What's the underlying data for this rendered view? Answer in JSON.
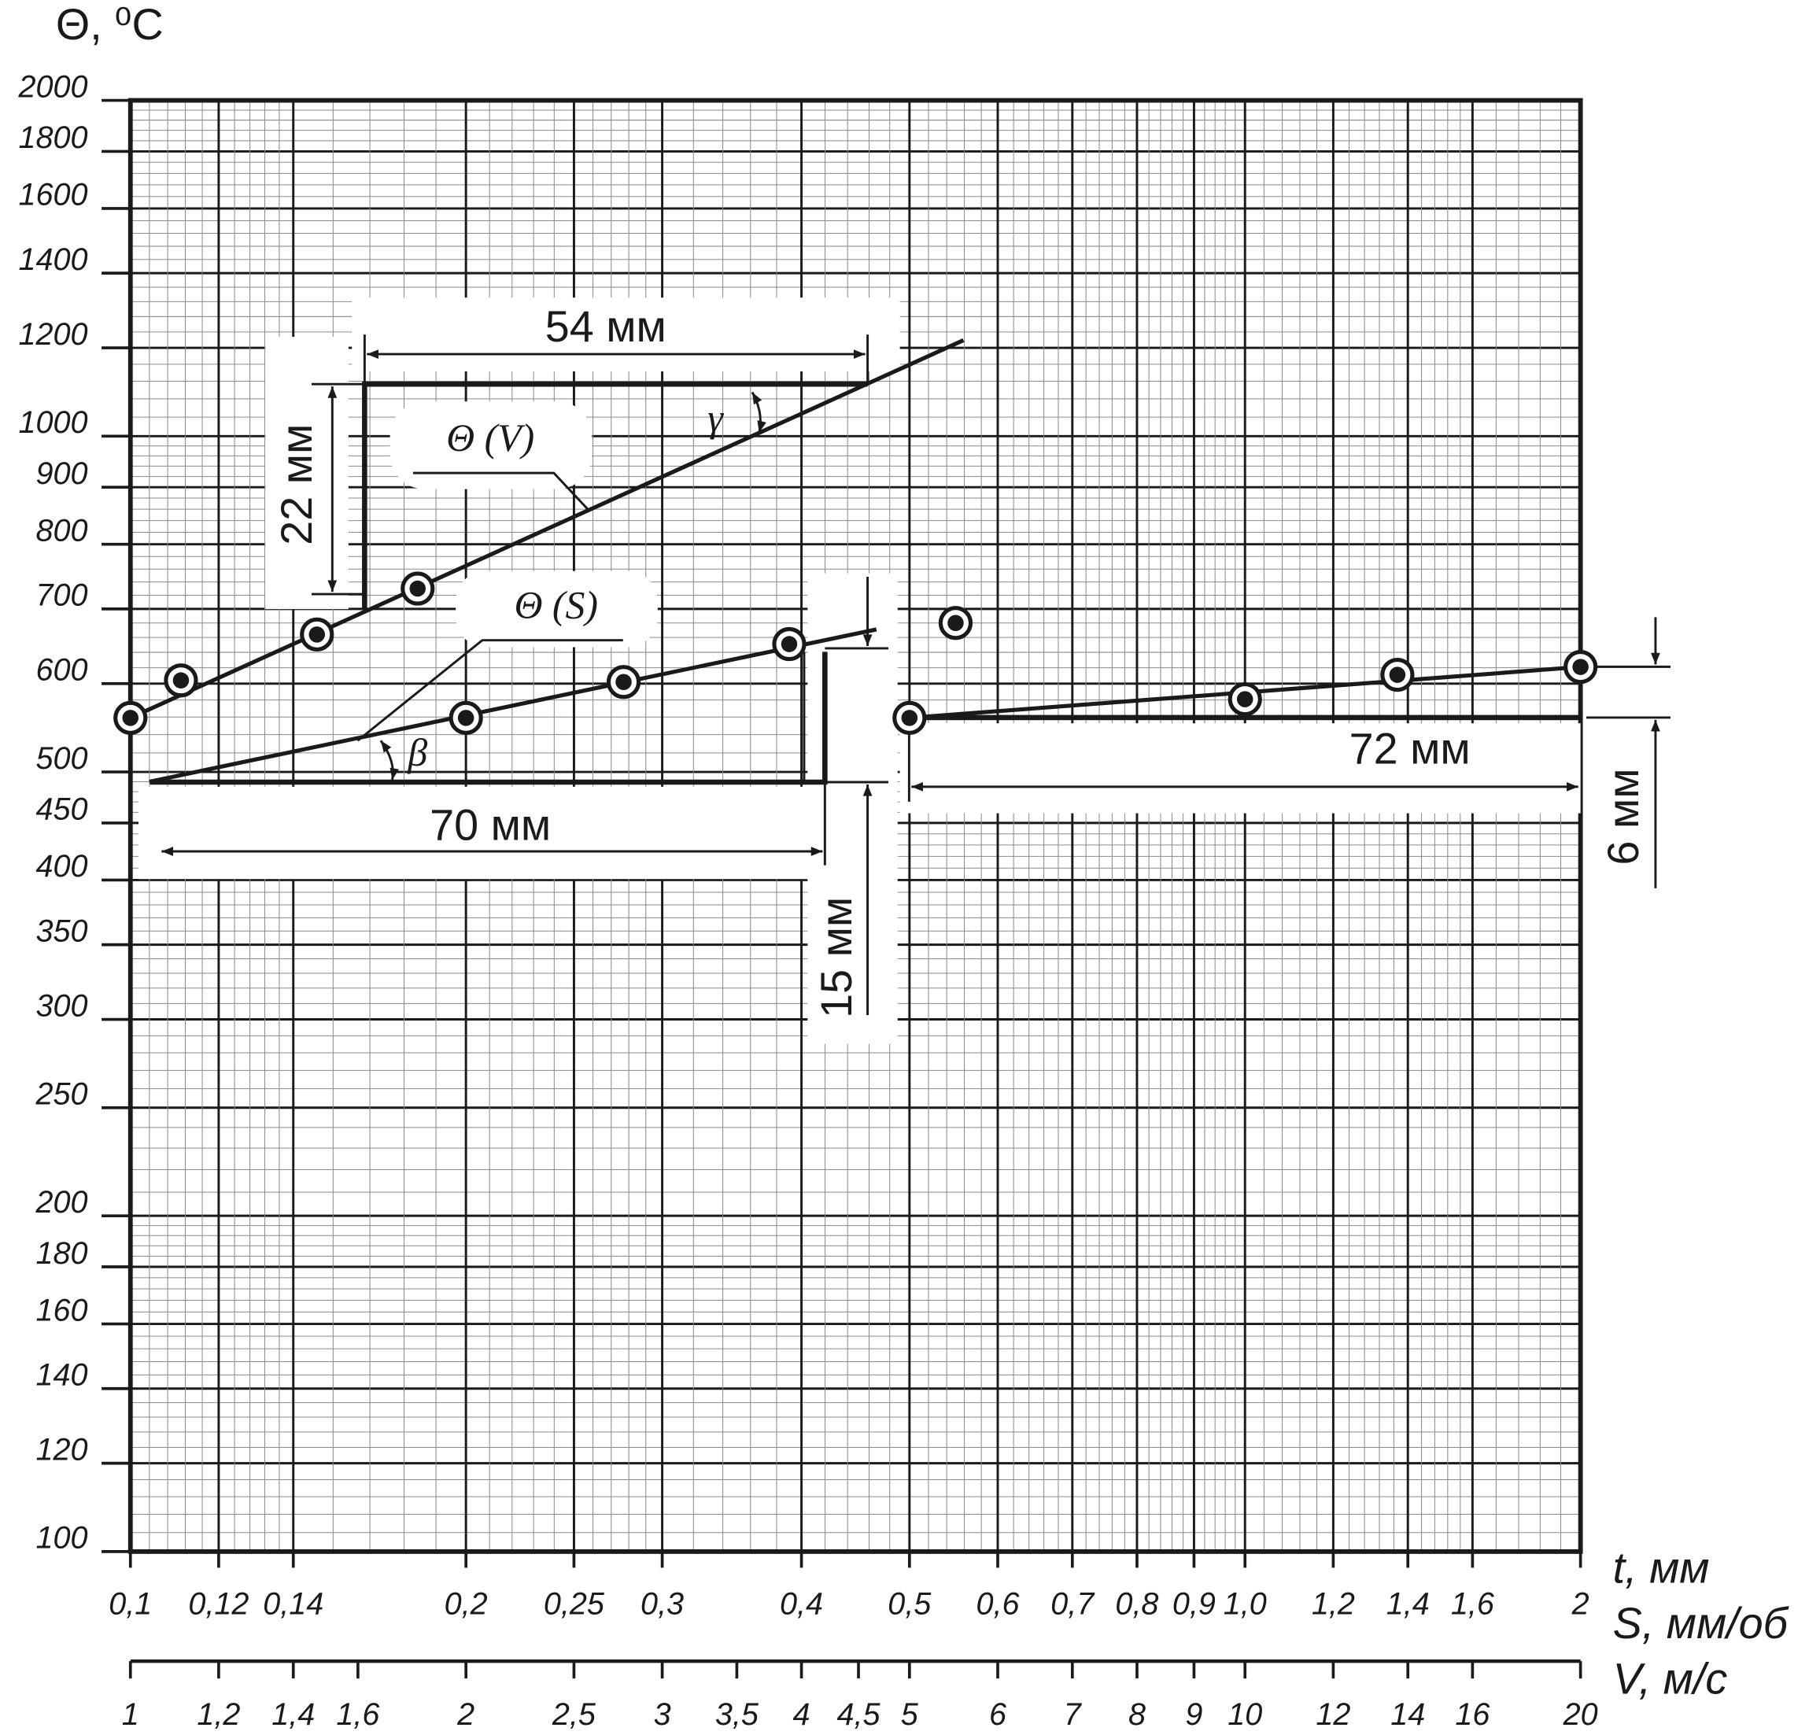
{
  "chart_data": {
    "type": "scatter",
    "log_x": true,
    "log_y": true,
    "grid": true,
    "color": "#1a1a1a",
    "y_label": "Θ, ⁰С",
    "ylim": [
      100,
      2000
    ],
    "yticks": [
      100,
      120,
      140,
      160,
      180,
      200,
      250,
      300,
      350,
      400,
      450,
      500,
      600,
      700,
      800,
      900,
      1000,
      1200,
      1400,
      1600,
      1800,
      2000
    ],
    "x_axes": [
      {
        "xlim": [
          0.1,
          2
        ],
        "xticks": [
          {
            "value": 0.1,
            "label": "0,1"
          },
          {
            "value": 0.12,
            "label": "0,12"
          },
          {
            "value": 0.14,
            "label": "0,14"
          },
          {
            "value": 0.2,
            "label": "0,2"
          },
          {
            "value": 0.25,
            "label": "0,25"
          },
          {
            "value": 0.3,
            "label": "0,3"
          },
          {
            "value": 0.4,
            "label": "0,4"
          },
          {
            "value": 0.5,
            "label": "0,5"
          },
          {
            "value": 0.6,
            "label": "0,6"
          },
          {
            "value": 0.7,
            "label": "0,7"
          },
          {
            "value": 0.8,
            "label": "0,8"
          },
          {
            "value": 0.9,
            "label": "0,9"
          },
          {
            "value": 1.0,
            "label": "1,0"
          },
          {
            "value": 1.2,
            "label": "1,2"
          },
          {
            "value": 1.4,
            "label": "1,4"
          },
          {
            "value": 1.6,
            "label": "1,6"
          },
          2
        ],
        "series": [
          {
            "x_label": "t,  мм",
            "x": [
              0.5,
              1.0,
              1.37,
              2
            ],
            "values": [
              559,
              581,
              611,
              621
            ],
            "fit": {
              "x": [
                0.5,
                2
              ],
              "values": [
                559,
                621
              ]
            }
          },
          {
            "x_label": "S, мм/об",
            "name": "Θ (S)",
            "x": [
              0.2,
              0.277,
              0.39,
              0.55
            ],
            "values": [
              559,
              602,
              651,
              680
            ],
            "fit": {
              "x": [
                0.104,
                0.467
              ],
              "values": [
                490,
                671
              ]
            }
          }
        ]
      },
      {
        "xlim": [
          1,
          20
        ],
        "xticks": [
          1,
          {
            "value": 1.2,
            "label": "1,2"
          },
          {
            "value": 1.4,
            "label": "1,4"
          },
          {
            "value": 1.6,
            "label": "1,6"
          },
          2,
          {
            "value": 2.5,
            "label": "2,5"
          },
          3,
          {
            "value": 3.5,
            "label": "3,5"
          },
          4,
          {
            "value": 4.5,
            "label": "4,5"
          },
          5,
          6,
          7,
          8,
          9,
          10,
          12,
          14,
          16,
          20
        ],
        "series": [
          {
            "x_label": "V, м/с",
            "name": "Θ (V)",
            "x": [
              1,
              1.11,
              1.47,
              1.81
            ],
            "values": [
              559,
              604,
              664,
              730
            ],
            "fit": {
              "x": [
                1,
                5.59
              ],
              "values": [
                559,
                1219
              ]
            }
          }
        ]
      }
    ],
    "annotations": [
      "54 мм",
      "22 мм",
      "70 мм",
      "15 мм",
      "72 мм",
      "6 мм",
      "γ",
      "β"
    ]
  }
}
